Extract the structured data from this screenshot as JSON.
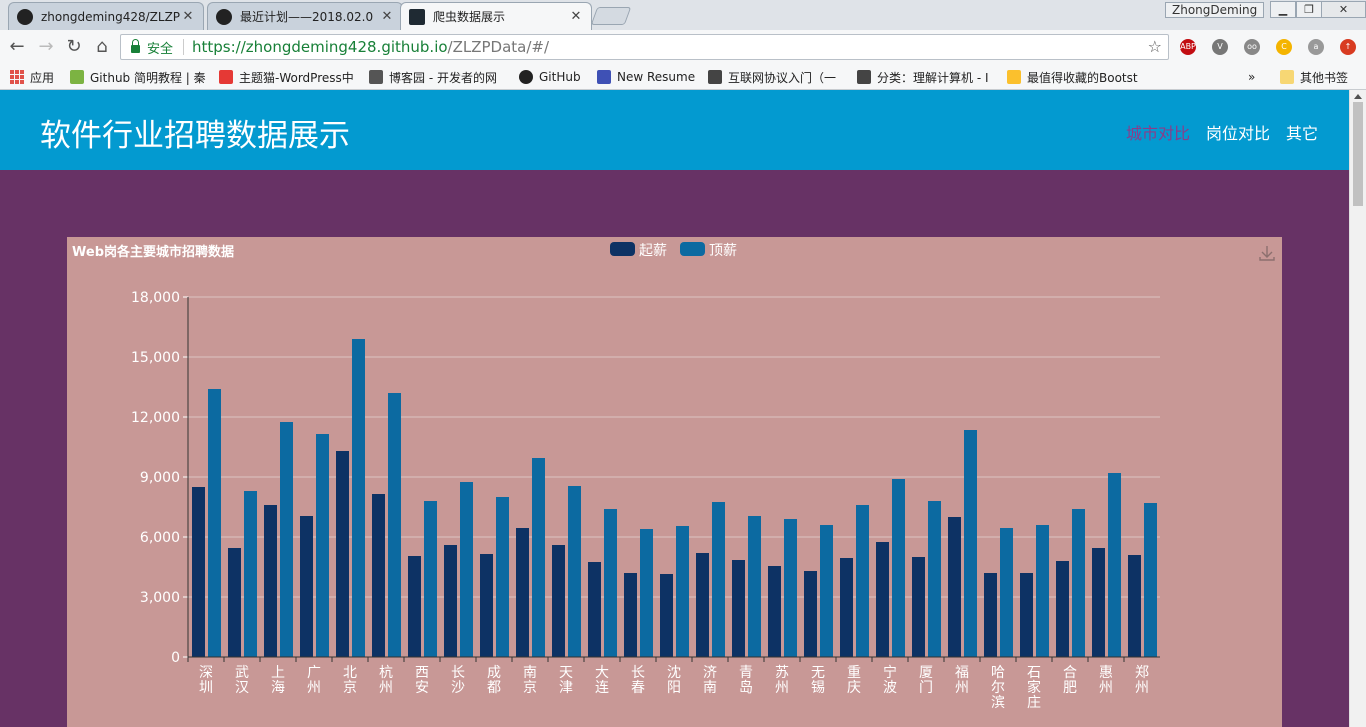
{
  "browser": {
    "tabs": [
      {
        "title": "zhongdeming428/ZLZP",
        "icon": "github-icon",
        "active": false
      },
      {
        "title": "最近计划——2018.02.0",
        "icon": "github-icon",
        "active": false
      },
      {
        "title": "爬虫数据展示",
        "icon": "react-icon",
        "active": true
      }
    ],
    "close_glyph": "✕",
    "user": "ZhongDeming",
    "secure_label": "安全",
    "url_host": "https://zhongdeming428.github.io",
    "url_path": "/ZLZPData/#/",
    "extensions": [
      {
        "label": "ABP",
        "color": "#c20d12"
      },
      {
        "label": "V",
        "color": "#777777"
      },
      {
        "label": "oo",
        "color": "#888888"
      },
      {
        "label": "C",
        "color": "#f4b400"
      },
      {
        "label": "a",
        "color": "#999999"
      },
      {
        "label": "↑",
        "color": "#d83b21"
      }
    ],
    "bookmarks": [
      {
        "label": "应用",
        "icon": "apps-icon"
      },
      {
        "label": "Github 简明教程 | 秦",
        "icon": "bookmark-icon",
        "color": "#7cb342"
      },
      {
        "label": "主题猫-WordPress中",
        "icon": "bookmark-icon",
        "color": "#e53935"
      },
      {
        "label": "博客园 - 开发者的网",
        "icon": "bookmark-icon",
        "color": "#555555"
      },
      {
        "label": "GitHub",
        "icon": "github-icon",
        "color": "#222222"
      },
      {
        "label": "New Resume",
        "icon": "bookmark-icon",
        "color": "#3f51b5"
      },
      {
        "label": "互联网协议入门（一",
        "icon": "bookmark-icon",
        "color": "#444444"
      },
      {
        "label": "分类：理解计算机 - I",
        "icon": "bookmark-icon",
        "color": "#444444"
      },
      {
        "label": "最值得收藏的Bootst",
        "icon": "bookmark-icon",
        "color": "#fbc02d"
      }
    ],
    "overflow": "»",
    "other_bookmarks": "其他书签"
  },
  "site": {
    "title": "软件行业招聘数据展示",
    "nav": [
      {
        "label": "城市对比",
        "active": true
      },
      {
        "label": "岗位对比",
        "active": false
      },
      {
        "label": "其它",
        "active": false
      }
    ],
    "colors": {
      "header": "#039ad0",
      "background": "#673265",
      "panel": "#c89896"
    }
  },
  "chart_data": {
    "type": "bar",
    "title": "Web岗各主要城市招聘数据",
    "legend_position": "top-center",
    "download_icon": "download-icon",
    "categories": [
      "深圳",
      "武汉",
      "上海",
      "广州",
      "北京",
      "杭州",
      "西安",
      "长沙",
      "成都",
      "南京",
      "天津",
      "大连",
      "长春",
      "沈阳",
      "济南",
      "青岛",
      "苏州",
      "无锡",
      "重庆",
      "宁波",
      "厦门",
      "福州",
      "哈尔滨",
      "石家庄",
      "合肥",
      "惠州",
      "郑州"
    ],
    "series": [
      {
        "name": "起薪",
        "color": "#0d3264",
        "values": [
          8500,
          5450,
          7600,
          7050,
          10300,
          8150,
          5050,
          5600,
          5150,
          6450,
          5600,
          4750,
          4200,
          4150,
          5200,
          4850,
          4550,
          4300,
          4950,
          5750,
          5000,
          7000,
          4200,
          4200,
          4800,
          5450,
          5100
        ]
      },
      {
        "name": "顶薪",
        "color": "#0c6aa1",
        "values": [
          13400,
          8300,
          11750,
          11150,
          15900,
          13200,
          7800,
          8750,
          8000,
          9950,
          8550,
          7400,
          6400,
          6550,
          7750,
          7050,
          6900,
          6600,
          7600,
          8900,
          7800,
          11350,
          6450,
          6600,
          7400,
          9200,
          7700
        ]
      }
    ],
    "yticks": [
      "0",
      "3,000",
      "6,000",
      "9,000",
      "12,000",
      "15,000",
      "18,000"
    ],
    "ylim": [
      0,
      18000
    ],
    "grid": true
  }
}
